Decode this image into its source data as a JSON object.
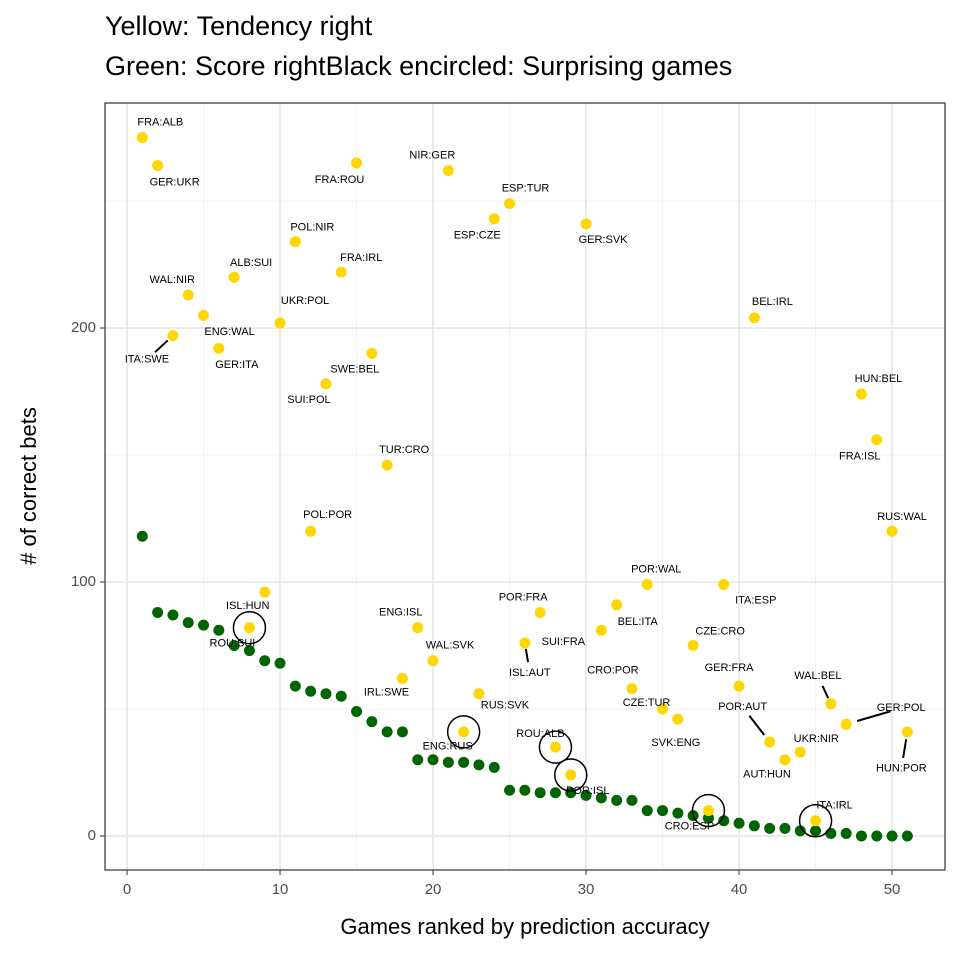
{
  "chart_data": {
    "type": "scatter",
    "title": "Yellow: Tendency right",
    "subtitle": "Green: Score rightBlack encircled: Surprising games",
    "x_label": "Games ranked by prediction accuracy",
    "y_label": "# of correct bets",
    "xlim": [
      -1.44,
      53.46
    ],
    "ylim": [
      -13.4,
      288.6
    ],
    "xticks": [
      0,
      10,
      20,
      30,
      40,
      50
    ],
    "yticks": [
      0,
      100,
      200
    ],
    "grid": true,
    "x": [
      1,
      2,
      3,
      4,
      5,
      6,
      7,
      8,
      9,
      10,
      11,
      12,
      13,
      14,
      15,
      16,
      17,
      18,
      19,
      20,
      21,
      22,
      23,
      24,
      25,
      26,
      27,
      28,
      29,
      30,
      31,
      32,
      33,
      34,
      35,
      36,
      37,
      38,
      39,
      40,
      41,
      42,
      43,
      44,
      45,
      46,
      47,
      48,
      49,
      50,
      51
    ],
    "series": [
      {
        "name": "Score right",
        "color": "#006400",
        "values": [
          118,
          88,
          87,
          84,
          83,
          81,
          75,
          73,
          69,
          68,
          59,
          57,
          56,
          55,
          49,
          45,
          41,
          41,
          30,
          30,
          29,
          29,
          28,
          27,
          18,
          18,
          17,
          17,
          17,
          16,
          15,
          14,
          14,
          10,
          10,
          9,
          8,
          7,
          6,
          5,
          4,
          3,
          3,
          2,
          2,
          1,
          1,
          0,
          0,
          0,
          0
        ]
      },
      {
        "name": "Tendency right",
        "color": "#FFD700",
        "values": [
          275,
          264,
          197,
          213,
          205,
          192,
          220,
          82,
          96,
          202,
          234,
          120,
          178,
          222,
          265,
          190,
          146,
          62,
          82,
          69,
          262,
          41,
          56,
          243,
          249,
          76,
          88,
          35,
          24,
          241,
          81,
          91,
          58,
          99,
          50,
          46,
          75,
          10,
          99,
          59,
          204,
          37,
          30,
          33,
          6,
          52,
          44,
          174,
          156,
          120,
          41
        ],
        "labels": [
          "FRA:ALB",
          "GER:UKR",
          "ITA:SWE",
          "WAL:NIR",
          "ENG:WAL",
          "GER:ITA",
          "ALB:SUI",
          "ROU:SUI",
          "ISL:HUN",
          "UKR:POL",
          "POL:NIR",
          "POL:POR",
          "SUI:POL",
          "FRA:IRL",
          "FRA:ROU",
          "SWE:BEL",
          "TUR:CRO",
          "IRL:SWE",
          "ENG:ISL",
          "WAL:SVK",
          "NIR:GER",
          "ENG:RUS",
          "RUS:SVK",
          "ESP:CZE",
          "ESP:TUR",
          "ISL:AUT",
          "POR:FRA",
          "ROU:ALB",
          "POR:ISL",
          "GER:SVK",
          "SUI:FRA",
          "BEL:ITA",
          "CRO:POR",
          "POR:WAL",
          "CZE:TUR",
          "SVK:ENG",
          "CZE:CRO",
          "CRO:ESP",
          "ITA:ESP",
          "GER:FRA",
          "BEL:IRL",
          "POR:AUT",
          "AUT:HUN",
          "UKR:NIR",
          "ITA:IRL",
          "WAL:BEL",
          "GER:POL",
          "HUN:BEL",
          "FRA:ISL",
          "RUS:WAL",
          "HUN:POR"
        ]
      }
    ],
    "circled_x": [
      8,
      22,
      28,
      29,
      38,
      45
    ]
  }
}
